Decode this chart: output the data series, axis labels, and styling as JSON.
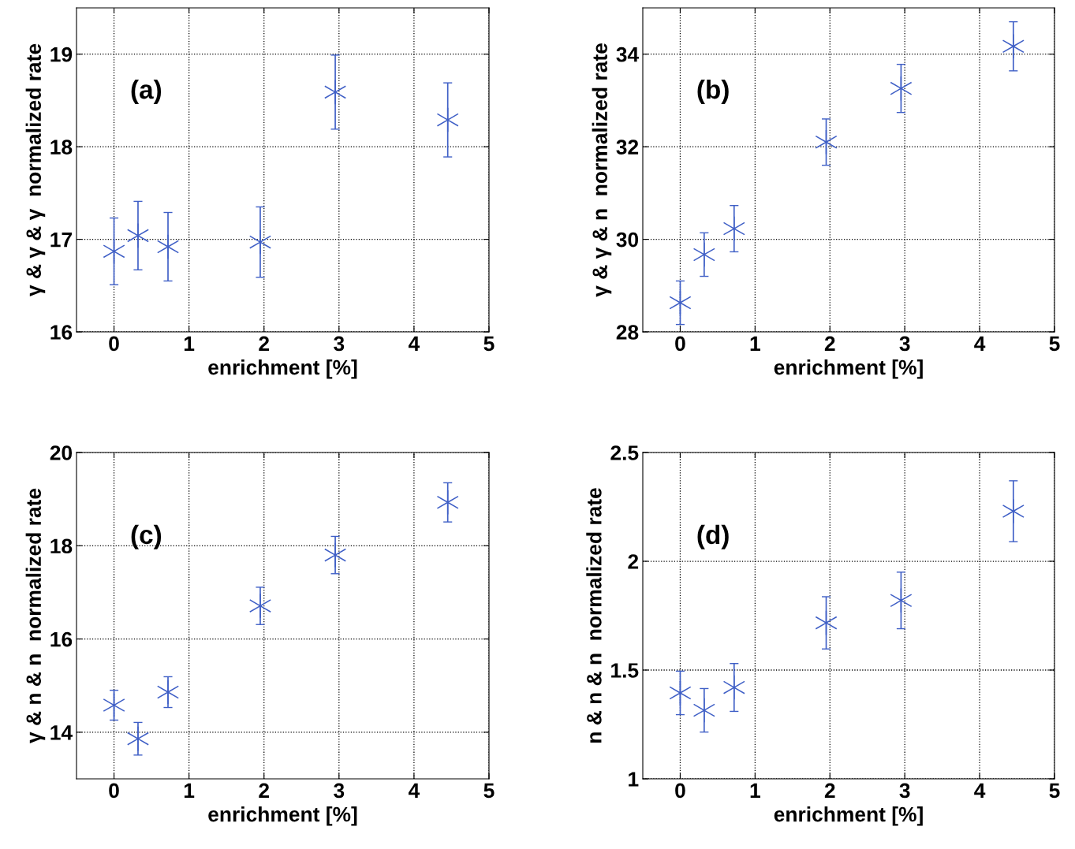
{
  "chart_data": [
    {
      "type": "scatter",
      "xlabel": "enrichment [%]",
      "ylabel": "γ & γ & γ  normalized rate",
      "annotations": [
        "(a)"
      ],
      "x": [
        0,
        0.32,
        0.72,
        1.95,
        2.95,
        4.45
      ],
      "series": [
        {
          "color": "#3f5fc6",
          "values": [
            16.87,
            17.04,
            16.92,
            16.97,
            18.59,
            18.29
          ],
          "errors": [
            0.36,
            0.37,
            0.37,
            0.38,
            0.4,
            0.4
          ]
        }
      ],
      "xlim": [
        -0.5,
        5
      ],
      "ylim": [
        16,
        19.5
      ],
      "xticks": [
        0,
        1,
        2,
        3,
        4,
        5
      ],
      "yticks": [
        16,
        17,
        18,
        19
      ],
      "grid": true,
      "marker": "cross"
    },
    {
      "type": "scatter",
      "xlabel": "enrichment [%]",
      "ylabel": "γ & γ & n  normalized rate",
      "annotations": [
        "(b)"
      ],
      "x": [
        0,
        0.32,
        0.72,
        1.95,
        2.95,
        4.45
      ],
      "series": [
        {
          "color": "#3f5fc6",
          "values": [
            28.63,
            29.67,
            30.23,
            32.1,
            33.26,
            34.17
          ],
          "errors": [
            0.47,
            0.47,
            0.5,
            0.5,
            0.52,
            0.53
          ]
        }
      ],
      "xlim": [
        -0.5,
        5
      ],
      "ylim": [
        28,
        35
      ],
      "xticks": [
        0,
        1,
        2,
        3,
        4,
        5
      ],
      "yticks": [
        28,
        30,
        32,
        34
      ],
      "grid": true,
      "marker": "cross"
    },
    {
      "type": "scatter",
      "xlabel": "enrichment [%]",
      "ylabel": "γ & n & n  normalized rate",
      "annotations": [
        "(c)"
      ],
      "x": [
        0,
        0.32,
        0.72,
        1.95,
        2.95,
        4.45
      ],
      "series": [
        {
          "color": "#3f5fc6",
          "values": [
            14.58,
            13.86,
            14.86,
            16.71,
            17.8,
            18.93
          ],
          "errors": [
            0.32,
            0.35,
            0.33,
            0.4,
            0.4,
            0.42
          ]
        }
      ],
      "xlim": [
        -0.5,
        5
      ],
      "ylim": [
        13,
        20
      ],
      "xticks": [
        0,
        1,
        2,
        3,
        4,
        5
      ],
      "yticks": [
        14,
        16,
        18,
        20
      ],
      "grid": true,
      "marker": "cross"
    },
    {
      "type": "scatter",
      "xlabel": "enrichment [%]",
      "ylabel": "n & n & n  normalized rate",
      "annotations": [
        "(d)"
      ],
      "x": [
        0,
        0.32,
        0.72,
        1.95,
        2.95,
        4.45
      ],
      "series": [
        {
          "color": "#3f5fc6",
          "values": [
            1.395,
            1.315,
            1.42,
            1.717,
            1.82,
            2.23
          ],
          "errors": [
            0.1,
            0.1,
            0.11,
            0.12,
            0.13,
            0.14
          ]
        }
      ],
      "xlim": [
        -0.5,
        5
      ],
      "ylim": [
        1,
        2.5
      ],
      "xticks": [
        0,
        1,
        2,
        3,
        4,
        5
      ],
      "yticks": [
        1,
        1.5,
        2,
        2.5
      ],
      "grid": true,
      "marker": "cross"
    }
  ]
}
